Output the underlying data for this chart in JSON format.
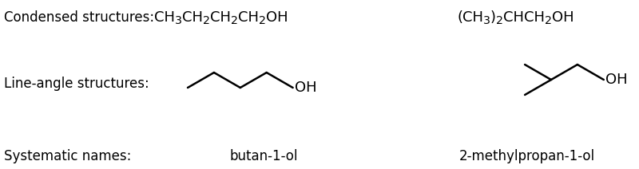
{
  "bg_color": "#ffffff",
  "text_color": "#000000",
  "label_condensed": "Condensed structures:",
  "label_line_angle": "Line-angle structures:",
  "label_systematic": "Systematic names:",
  "formula1_parts": [
    {
      "text": "CH",
      "sub": false
    },
    {
      "text": "3",
      "sub": true
    },
    {
      "text": "CH",
      "sub": false
    },
    {
      "text": "2",
      "sub": true
    },
    {
      "text": "CH",
      "sub": false
    },
    {
      "text": "2",
      "sub": true
    },
    {
      "text": "CH",
      "sub": false
    },
    {
      "text": "2",
      "sub": true
    },
    {
      "text": "OH",
      "sub": false
    }
  ],
  "formula2_parts": [
    {
      "text": "(CH",
      "sub": false
    },
    {
      "text": "3",
      "sub": true
    },
    {
      "text": ")",
      "sub": false
    },
    {
      "text": "2",
      "sub": true
    },
    {
      "text": "CHCH",
      "sub": false
    },
    {
      "text": "2",
      "sub": true
    },
    {
      "text": "OH",
      "sub": false
    }
  ],
  "name1": "butan-1-ol",
  "name2": "2-methylpropan-1-ol",
  "font_size_labels": 12,
  "font_size_formula": 13,
  "font_size_names": 12,
  "line_width": 1.8
}
